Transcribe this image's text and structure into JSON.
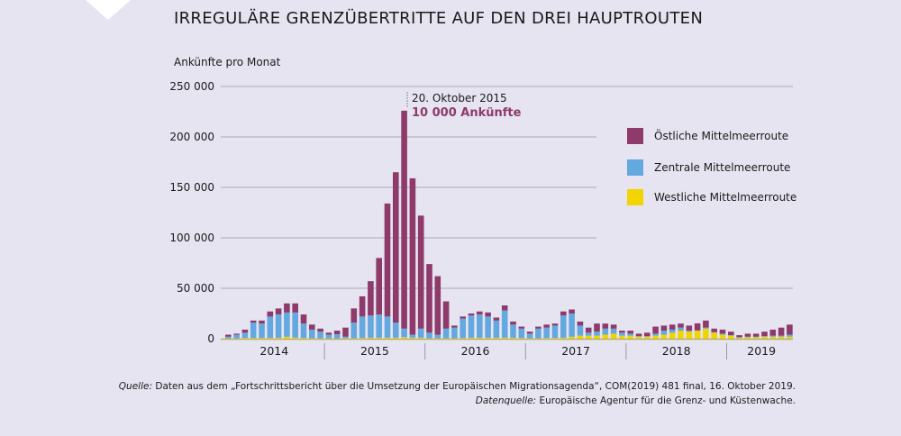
{
  "chart_data": {
    "type": "bar",
    "stacked": true,
    "title": "IRREGULÄRE GRENZÜBERTRITTE AUF DEN DREI HAUPTROUTEN",
    "ylabel": "Ankünfte pro Monat",
    "xlabel": "",
    "ylim": [
      0,
      250000
    ],
    "yticks": [
      0,
      50000,
      100000,
      150000,
      200000,
      250000
    ],
    "ytick_labels": [
      "0",
      "50 000",
      "100 000",
      "150 000",
      "200 000",
      "250 000"
    ],
    "grid": true,
    "legend_position": "right",
    "x_year_labels": [
      "2014",
      "2015",
      "2016",
      "2017",
      "2018",
      "2019"
    ],
    "months_per_year": [
      12,
      12,
      12,
      12,
      12,
      8
    ],
    "series": [
      {
        "name": "Westliche Mittelmeerroute",
        "color": "#f2d400",
        "values": [
          400,
          400,
          800,
          800,
          800,
          800,
          1000,
          2000,
          1000,
          800,
          500,
          400,
          300,
          300,
          500,
          500,
          800,
          1000,
          1000,
          1000,
          1000,
          1500,
          1000,
          1000,
          500,
          500,
          500,
          500,
          700,
          1000,
          1000,
          1000,
          1000,
          1000,
          1000,
          700,
          500,
          500,
          700,
          800,
          1000,
          2000,
          3000,
          3000,
          3000,
          4000,
          5000,
          3000,
          3000,
          2000,
          2000,
          3000,
          4000,
          6000,
          8000,
          7000,
          8000,
          10000,
          6000,
          4000,
          3000,
          1000,
          1500,
          1500,
          2000,
          2000,
          2000,
          2000
        ]
      },
      {
        "name": "Zentrale Mittelmeerroute",
        "color": "#64a8e0",
        "values": [
          1600,
          3600,
          5200,
          15200,
          14200,
          21200,
          23000,
          24000,
          25000,
          14200,
          8500,
          6600,
          3700,
          4200,
          1500,
          15500,
          21200,
          22000,
          23000,
          21000,
          15000,
          8500,
          3000,
          9000,
          5500,
          3500,
          9500,
          10500,
          19300,
          22000,
          23000,
          21000,
          17000,
          27000,
          13000,
          9300,
          4500,
          9500,
          10300,
          12200,
          22000,
          23000,
          10000,
          3000,
          4000,
          6000,
          5000,
          3000,
          2000,
          500,
          500,
          2000,
          4000,
          3000,
          3000,
          1000,
          200,
          1000,
          500,
          1000,
          500,
          500,
          500,
          500,
          500,
          1000,
          1000,
          2000
        ]
      },
      {
        "name": "Östliche Mittelmeerroute",
        "color": "#8e3a6a",
        "values": [
          2000,
          1000,
          3000,
          2000,
          3000,
          5000,
          6000,
          9000,
          9000,
          9000,
          5000,
          3000,
          2000,
          3500,
          9000,
          14000,
          20000,
          34000,
          56000,
          112000,
          149000,
          216000,
          155000,
          112000,
          68000,
          58000,
          27000,
          2000,
          2000,
          2000,
          3000,
          4000,
          3000,
          5000,
          3000,
          2000,
          2000,
          2000,
          3000,
          2000,
          4000,
          4000,
          4000,
          5000,
          8000,
          5000,
          4000,
          2000,
          3000,
          2500,
          3500,
          7000,
          5000,
          5000,
          4000,
          5000,
          7000,
          7000,
          3500,
          4000,
          3500,
          2000,
          3000,
          3000,
          4500,
          6000,
          8000,
          10000
        ]
      }
    ],
    "annotation": {
      "date": "20. Oktober 2015",
      "text": "10 000 Ankünfte",
      "color": "#8e3a6a"
    }
  },
  "source": {
    "label1": "Quelle:",
    "text1": " Daten aus dem „Fortschrittsbericht über die Umsetzung der Europäischen Migrationsagenda“, COM(2019) 481 final, 16. Oktober 2019.",
    "label2": "Datenquelle:",
    "text2": " Europäische Agentur für die Grenz- und Küstenwache."
  }
}
